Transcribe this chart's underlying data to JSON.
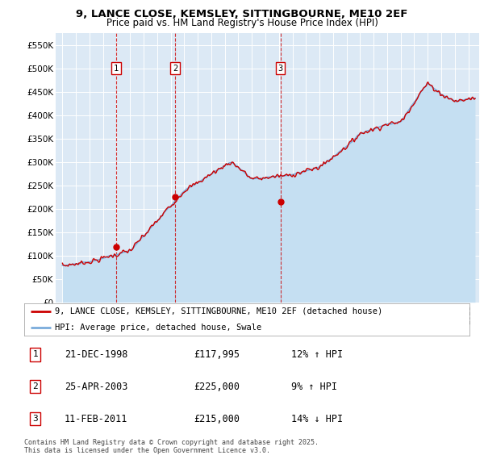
{
  "title": "9, LANCE CLOSE, KEMSLEY, SITTINGBOURNE, ME10 2EF",
  "subtitle": "Price paid vs. HM Land Registry's House Price Index (HPI)",
  "ylabel_ticks": [
    "£0",
    "£50K",
    "£100K",
    "£150K",
    "£200K",
    "£250K",
    "£300K",
    "£350K",
    "£400K",
    "£450K",
    "£500K",
    "£550K"
  ],
  "ylim": [
    0,
    575000
  ],
  "xlim_start": 1994.5,
  "xlim_end": 2025.8,
  "sale_dates": [
    1998.97,
    2003.32,
    2011.12
  ],
  "sale_prices": [
    117995,
    225000,
    215000
  ],
  "sale_labels": [
    "1",
    "2",
    "3"
  ],
  "legend_line1": "9, LANCE CLOSE, KEMSLEY, SITTINGBOURNE, ME10 2EF (detached house)",
  "legend_line2": "HPI: Average price, detached house, Swale",
  "table_data": [
    [
      "1",
      "21-DEC-1998",
      "£117,995",
      "12% ↑ HPI"
    ],
    [
      "2",
      "25-APR-2003",
      "£225,000",
      "9% ↑ HPI"
    ],
    [
      "3",
      "11-FEB-2011",
      "£215,000",
      "14% ↓ HPI"
    ]
  ],
  "footnote": "Contains HM Land Registry data © Crown copyright and database right 2025.\nThis data is licensed under the Open Government Licence v3.0.",
  "red_color": "#cc0000",
  "blue_color": "#7aabdb",
  "blue_fill": "#c5dff2",
  "plot_bg": "#dce9f5"
}
